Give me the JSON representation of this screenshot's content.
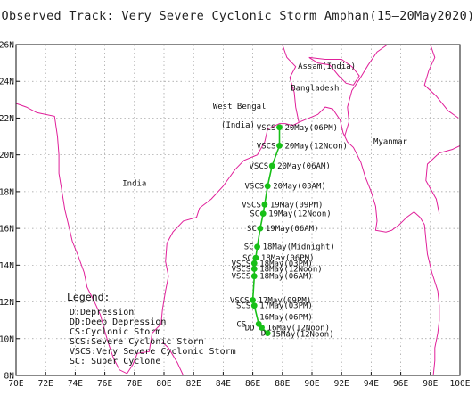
{
  "title": "Observed Track: Very Severe Cyclonic Storm Amphan(15—20May2020)",
  "colors": {
    "track": "#18c018",
    "coast": "#e0209a",
    "grid": "#9a9a9a"
  },
  "map": {
    "lon_range": [
      70,
      100
    ],
    "lat_range": [
      8,
      26
    ],
    "lon_ticks": [
      "70E",
      "72E",
      "74E",
      "76E",
      "78E",
      "80E",
      "82E",
      "84E",
      "86E",
      "88E",
      "90E",
      "92E",
      "94E",
      "96E",
      "98E",
      "100E"
    ],
    "lat_ticks": [
      {
        "lat": 26,
        "label": "26N"
      },
      {
        "lat": 24,
        "label": "24N"
      },
      {
        "lat": 22,
        "label": "22N"
      },
      {
        "lat": 20,
        "label": "20N"
      },
      {
        "lat": 18,
        "label": "18N"
      },
      {
        "lat": 16,
        "label": "16N"
      },
      {
        "lat": 14,
        "label": "14N"
      },
      {
        "lat": 12,
        "label": "12N"
      },
      {
        "lat": 10,
        "label": "10N"
      },
      {
        "lat": 8,
        "label": "8N"
      }
    ],
    "place_labels": [
      {
        "name": "Assam(India)",
        "lon": 91.0,
        "lat": 24.7
      },
      {
        "name": "Bangladesh",
        "lon": 90.2,
        "lat": 23.5
      },
      {
        "name": "West Bengal",
        "lon": 85.1,
        "lat": 22.5
      },
      {
        "name": "(India)",
        "lon": 85.0,
        "lat": 21.5
      },
      {
        "name": "Myanmar",
        "lon": 95.3,
        "lat": 20.6
      },
      {
        "name": "India",
        "lon": 78.0,
        "lat": 18.3
      }
    ]
  },
  "track": [
    {
      "lon": 87.0,
      "lat": 10.3,
      "cat": "D",
      "time": "15May(12Noon)"
    },
    {
      "lon": 86.6,
      "lat": 10.6,
      "cat": "DD",
      "time": "16May(12Noon)"
    },
    {
      "lon": 86.4,
      "lat": 10.8,
      "cat": "CS",
      "time": "16May(06PM)"
    },
    {
      "lon": 86.1,
      "lat": 11.8,
      "cat": "SCS",
      "time": "17May(03PM)"
    },
    {
      "lon": 86.0,
      "lat": 12.1,
      "cat": "VSCS",
      "time": "17May(09PM)"
    },
    {
      "lon": 86.1,
      "lat": 13.4,
      "cat": "VSCS",
      "time": "18May(06AM)"
    },
    {
      "lon": 86.1,
      "lat": 13.8,
      "cat": "VSCS",
      "time": "18May(12Noon)"
    },
    {
      "lon": 86.1,
      "lat": 14.1,
      "cat": "VSCS",
      "time": "18May(03PM)"
    },
    {
      "lon": 86.2,
      "lat": 14.4,
      "cat": "SC",
      "time": "18May(06PM)"
    },
    {
      "lon": 86.3,
      "lat": 15.0,
      "cat": "SC",
      "time": "18May(Midnight)"
    },
    {
      "lon": 86.5,
      "lat": 16.0,
      "cat": "SC",
      "time": "19May(06AM)"
    },
    {
      "lon": 86.7,
      "lat": 16.8,
      "cat": "SC",
      "time": "19May(12Noon)"
    },
    {
      "lon": 86.8,
      "lat": 17.3,
      "cat": "VSCS",
      "time": "19May(09PM)"
    },
    {
      "lon": 87.0,
      "lat": 18.3,
      "cat": "VSCS",
      "time": "20May(03AM)"
    },
    {
      "lon": 87.3,
      "lat": 19.4,
      "cat": "VSCS",
      "time": "20May(06AM)"
    },
    {
      "lon": 87.8,
      "lat": 20.5,
      "cat": "VSCS",
      "time": "20May(12Noon)"
    },
    {
      "lon": 87.8,
      "lat": 21.5,
      "cat": "VSCS",
      "time": "20May(06PM)"
    }
  ],
  "legend": {
    "title": "Legend:",
    "items": [
      "D:Depression",
      "DD:Deep Depression",
      "CS:Cyclonic Storm",
      "SCS:Severe Cyclonic Storm",
      "VSCS:Very Severe Cyclonic Storm",
      "SC: Super Cyclone"
    ]
  }
}
